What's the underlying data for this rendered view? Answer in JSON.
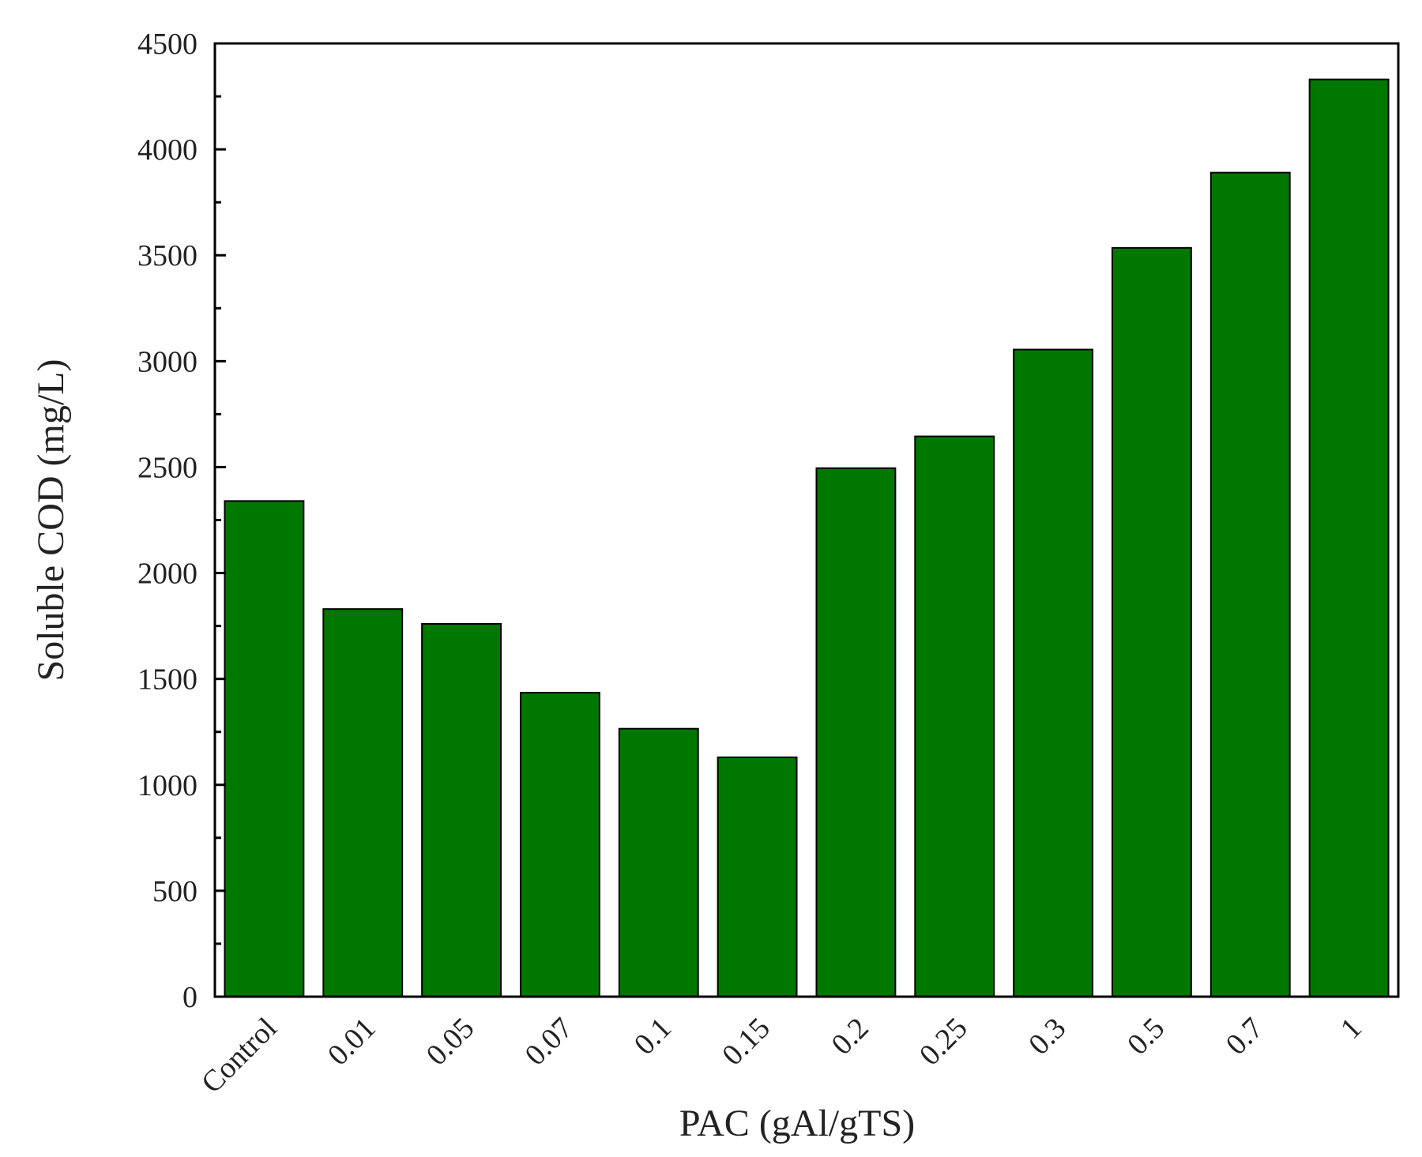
{
  "chart_data": {
    "type": "bar",
    "title": "",
    "xlabel": "PAC (gAl/gTS)",
    "ylabel": "Soluble COD (mg/L)",
    "categories": [
      "Control",
      "0.01",
      "0.05",
      "0.07",
      "0.1",
      "0.15",
      "0.2",
      "0.25",
      "0.3",
      "0.5",
      "0.7",
      "1"
    ],
    "values": [
      2340,
      1830,
      1760,
      1435,
      1265,
      1130,
      2495,
      2645,
      3055,
      3535,
      3890,
      4330
    ],
    "ylim": [
      0,
      4500
    ],
    "yticks": [
      0,
      500,
      1000,
      1500,
      2000,
      2500,
      3000,
      3500,
      4000,
      4500
    ],
    "grid": false,
    "legend": "none",
    "bar_color": "#007800",
    "axis_color": "#000000"
  }
}
